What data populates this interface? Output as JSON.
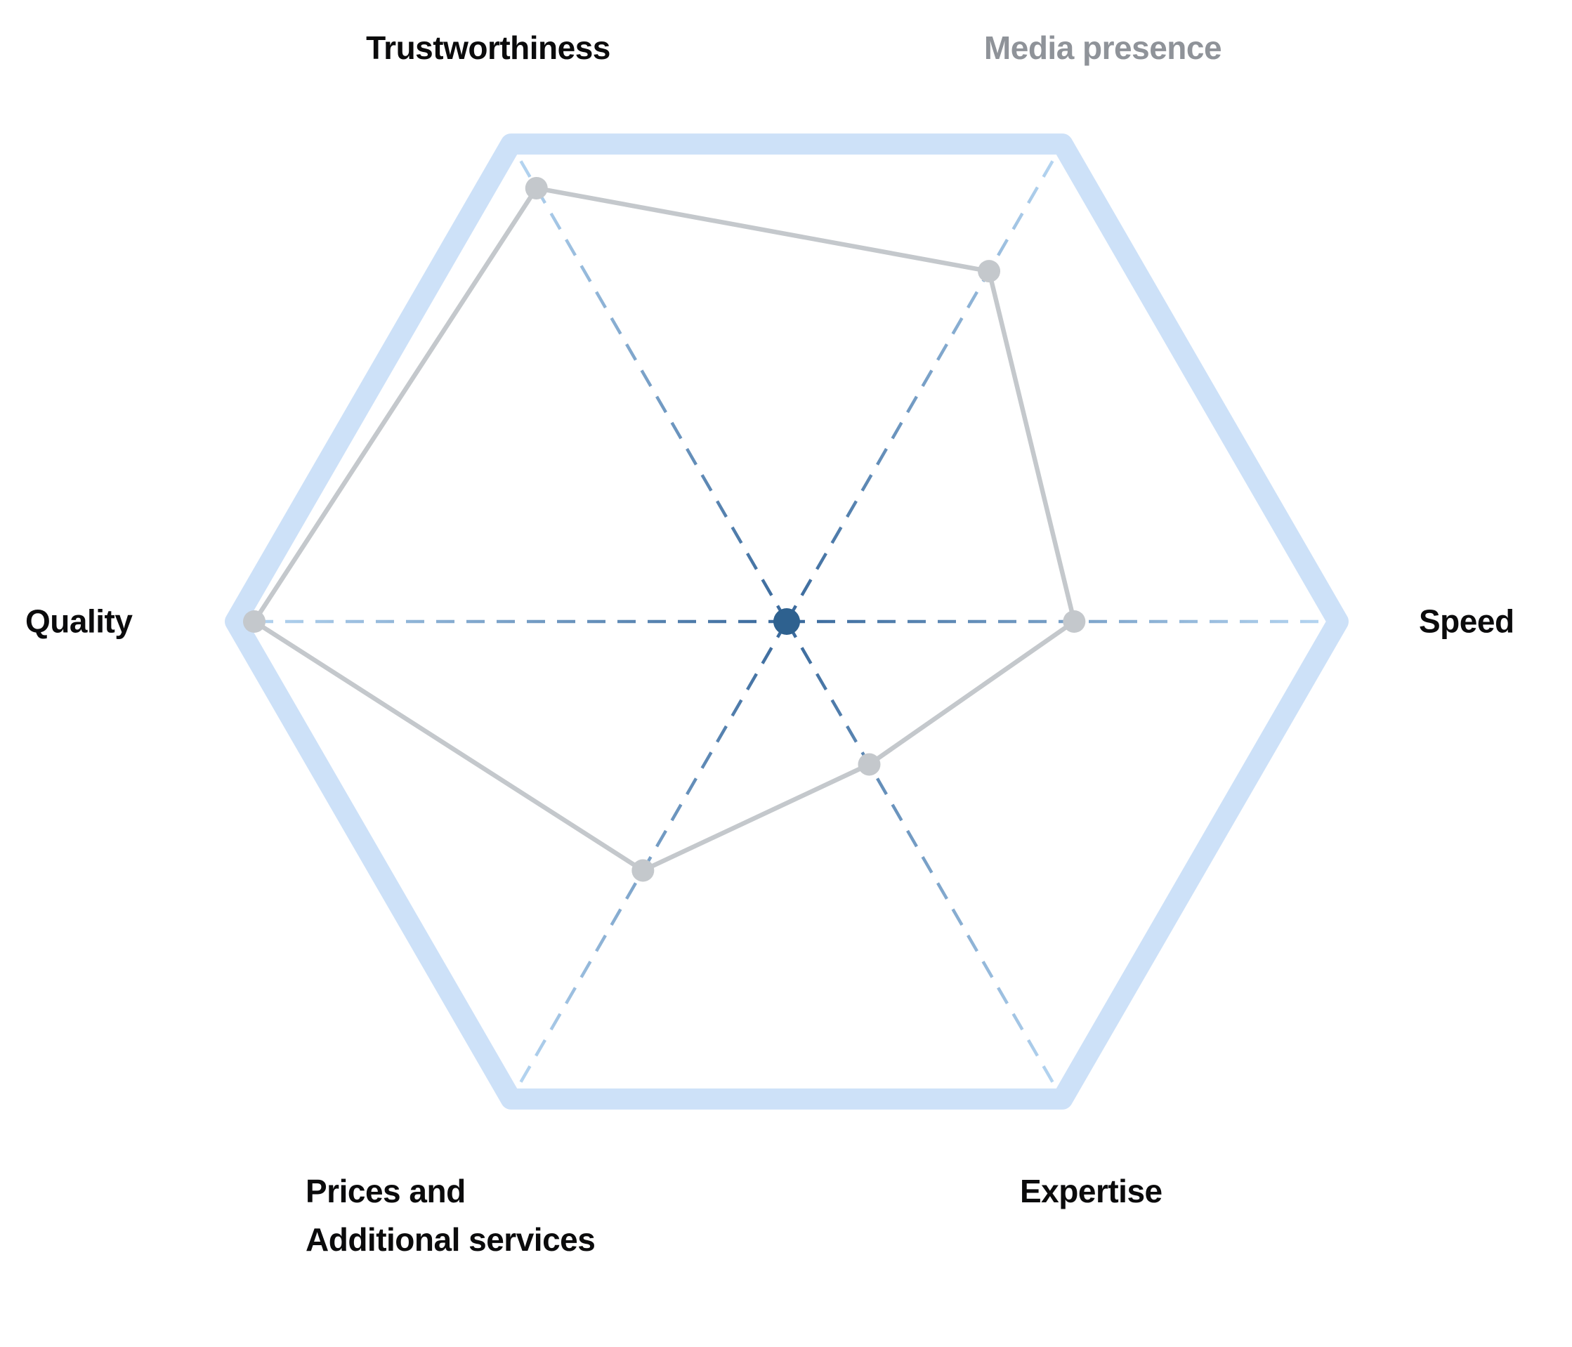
{
  "chart_data": {
    "type": "radar",
    "title": "",
    "value_range": [
      0,
      1
    ],
    "grid": "hexagon-outline",
    "axes": [
      {
        "label": "Trustworthiness",
        "angle_deg": 120,
        "value": 0.94,
        "muted": false
      },
      {
        "label": "Media presence",
        "angle_deg": 60,
        "value": 0.76,
        "muted": true
      },
      {
        "label": "Speed",
        "angle_deg": 0,
        "value": 0.54,
        "muted": false
      },
      {
        "label": "Expertise",
        "angle_deg": 300,
        "value": 0.31,
        "muted": false
      },
      {
        "label": "Prices and\nAdditional services",
        "angle_deg": 240,
        "value": 0.54,
        "muted": false
      },
      {
        "label": "Quality",
        "angle_deg": 180,
        "value": 1.0,
        "muted": false
      }
    ],
    "colors": {
      "outline": "#cde1f8",
      "axis_center": "#38689b",
      "axis_edge": "#b4d4f0",
      "series": "#c4c8cc",
      "center_dot": "#2e618f",
      "label": "#0b0b0c",
      "label_muted": "#8f9399"
    }
  }
}
